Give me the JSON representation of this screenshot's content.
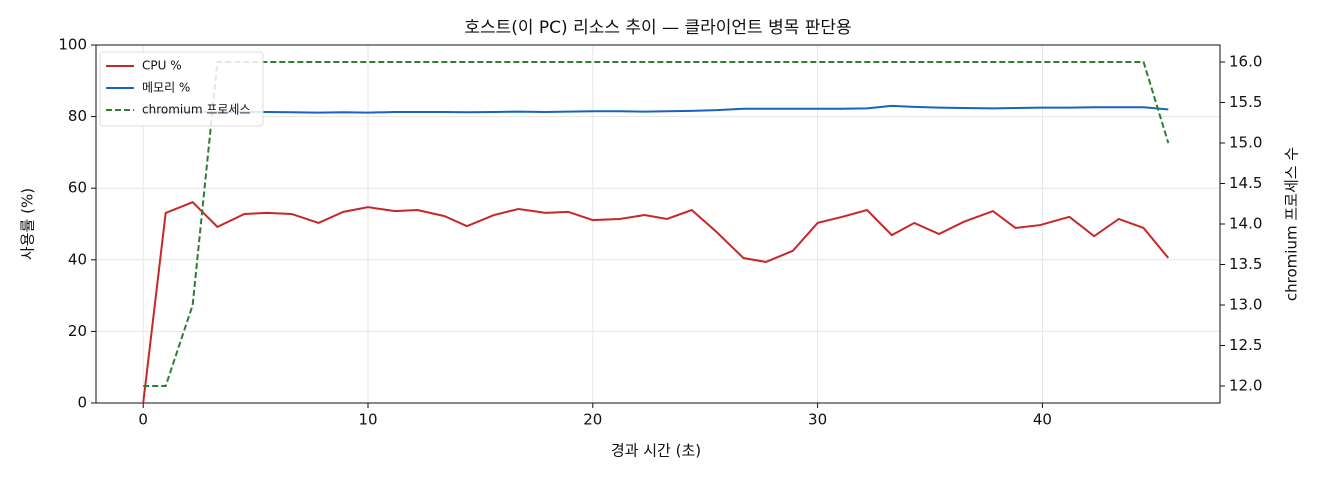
{
  "chart_data": {
    "type": "line",
    "title": "호스트(이 PC) 리소스 추이 — 클라이언트 병목 판단용",
    "x_label": "경과 시간 (초)",
    "y_label": "사용률 (%)",
    "y2_label": "chromium 프로세스 수",
    "x": [
      0,
      1.0,
      2.2,
      3.3,
      4.5,
      5.5,
      6.6,
      7.8,
      8.9,
      10.0,
      11.2,
      12.2,
      13.4,
      14.4,
      15.6,
      16.7,
      17.9,
      18.9,
      20.0,
      21.2,
      22.3,
      23.3,
      24.4,
      25.5,
      26.7,
      27.7,
      28.9,
      30.0,
      31.1,
      32.2,
      33.3,
      34.3,
      35.4,
      36.5,
      37.8,
      38.8,
      39.9,
      41.2,
      42.3,
      43.4,
      44.5,
      45.6
    ],
    "series": [
      {
        "name": "CPU %",
        "color": "#c62828",
        "values": [
          0,
          53.1,
          56.1,
          49.2,
          52.8,
          53.1,
          52.8,
          50.3,
          53.4,
          54.7,
          53.6,
          53.9,
          52.2,
          49.4,
          52.5,
          54.2,
          53.1,
          53.4,
          51.1,
          51.4,
          52.5,
          51.4,
          53.9,
          47.8,
          40.5,
          39.4,
          42.5,
          50.3,
          52.0,
          53.9,
          46.9,
          50.3,
          47.2,
          50.6,
          53.6,
          48.9,
          49.7,
          52.0,
          46.6,
          51.4,
          48.9,
          40.5
        ]
      },
      {
        "name": "메모리 %",
        "color": "#1565c0",
        "values": [
          81.3,
          81.3,
          81.3,
          81.3,
          81.3,
          81.3,
          81.2,
          81.1,
          81.2,
          81.1,
          81.3,
          81.3,
          81.3,
          81.2,
          81.3,
          81.4,
          81.3,
          81.4,
          81.5,
          81.5,
          81.4,
          81.5,
          81.6,
          81.8,
          82.2,
          82.2,
          82.2,
          82.2,
          82.2,
          82.3,
          83.0,
          82.7,
          82.5,
          82.4,
          82.3,
          82.4,
          82.5,
          82.5,
          82.6,
          82.6,
          82.6,
          82.0
        ]
      },
      {
        "name": "chromium 프로세스",
        "color": "#2e7d32",
        "axis": "y2",
        "dashed": true,
        "values": [
          12,
          12,
          13,
          16,
          16,
          16,
          16,
          16,
          16,
          16,
          16,
          16,
          16,
          16,
          16,
          16,
          16,
          16,
          16,
          16,
          16,
          16,
          16,
          16,
          16,
          16,
          16,
          16,
          16,
          16,
          16,
          16,
          16,
          16,
          16,
          16,
          16,
          16,
          16,
          16,
          16,
          15
        ]
      }
    ],
    "xlim": [
      -2.1,
      47.9
    ],
    "xticks": [
      0,
      10,
      20,
      30,
      40
    ],
    "ylim": [
      0,
      100
    ],
    "yticks": [
      0,
      20,
      40,
      60,
      80,
      100
    ],
    "y2lim": [
      11.79,
      16.21
    ],
    "y2ticks": [
      {
        "value": 12,
        "label": "12.0"
      },
      {
        "value": 12.5,
        "label": "12.5"
      },
      {
        "value": 13,
        "label": "13.0"
      },
      {
        "value": 13.5,
        "label": "13.5"
      },
      {
        "value": 14,
        "label": "14.0"
      },
      {
        "value": 14.5,
        "label": "14.5"
      },
      {
        "value": 15,
        "label": "15.0"
      },
      {
        "value": 15.5,
        "label": "15.5"
      },
      {
        "value": 16,
        "label": "16.0"
      }
    ],
    "grid": true,
    "legend": "upper left"
  }
}
